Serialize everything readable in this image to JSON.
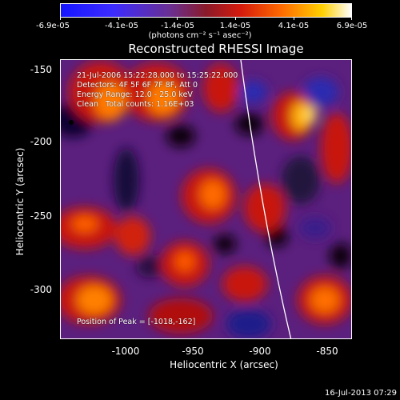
{
  "colorbar": {
    "ticks": [
      "-6.9e-05",
      "-4.1e-05",
      "-1.4e-05",
      "1.4e-05",
      "4.1e-05",
      "6.9e-05"
    ],
    "unit": "(photons cm⁻² s⁻¹ asec⁻²)"
  },
  "title": "Reconstructed RHESSI Image",
  "info": {
    "line1": "21-Jul-2006 15:22:28.000 to 15:25:22.000",
    "line2": "Detectors: 4F 5F 6F 7F 8F, Att 0",
    "line3": "Energy Range: 12.0 - 25.0 keV",
    "line4": "Clean   Total counts: 1.16E+03"
  },
  "peak_label": "Position of Peak = [-1018,-162]",
  "axes": {
    "xlabel": "Heliocentric X (arcsec)",
    "ylabel": "Heliocentric Y (arcsec)",
    "xticks": [
      "-1000",
      "-950",
      "-900",
      "-850"
    ],
    "yticks": [
      "-150",
      "-200",
      "-250",
      "-300"
    ]
  },
  "footer_time": "16-Jul-2013 07:29"
}
